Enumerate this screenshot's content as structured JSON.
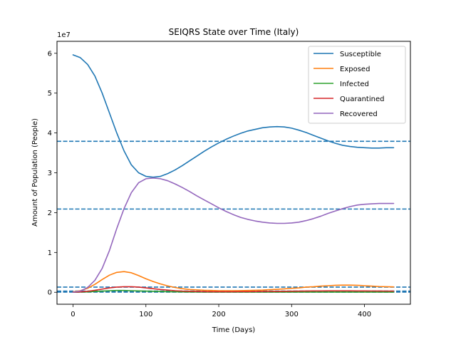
{
  "chart_data": {
    "type": "line",
    "title": "SEIQRS State over Time (Italy)",
    "xlabel": "Time (Days)",
    "ylabel": "Amount of Population (People)",
    "y_offset_label": "1e7",
    "xlim": [
      -22,
      463
    ],
    "ylim": [
      -3000000,
      63000000
    ],
    "x_ticks": [
      0,
      100,
      200,
      300,
      400
    ],
    "x_tick_labels": [
      "0",
      "100",
      "200",
      "300",
      "400"
    ],
    "y_ticks": [
      0,
      10000000,
      20000000,
      30000000,
      40000000,
      50000000,
      60000000
    ],
    "y_tick_labels": [
      "0",
      "1",
      "2",
      "3",
      "4",
      "5",
      "6"
    ],
    "legend_position": "top-right",
    "grid": false,
    "x": [
      0,
      10,
      20,
      30,
      40,
      50,
      60,
      70,
      80,
      90,
      100,
      110,
      120,
      130,
      140,
      150,
      160,
      170,
      180,
      190,
      200,
      210,
      220,
      230,
      240,
      250,
      260,
      270,
      280,
      290,
      300,
      310,
      320,
      330,
      340,
      350,
      360,
      370,
      380,
      390,
      400,
      410,
      420,
      430,
      440
    ],
    "series": [
      {
        "name": "Susceptible",
        "color": "#1f77b4",
        "values": [
          59600000,
          58900000,
          57200000,
          54300000,
          50000000,
          45000000,
          40000000,
          35500000,
          32000000,
          30000000,
          29100000,
          28900000,
          29100000,
          29800000,
          30700000,
          31800000,
          33000000,
          34200000,
          35400000,
          36500000,
          37500000,
          38400000,
          39200000,
          39900000,
          40500000,
          40900000,
          41300000,
          41500000,
          41600000,
          41500000,
          41200000,
          40700000,
          40100000,
          39400000,
          38700000,
          38000000,
          37400000,
          36900000,
          36600000,
          36400000,
          36300000,
          36200000,
          36200000,
          36300000,
          36300000
        ]
      },
      {
        "name": "Exposed",
        "color": "#ff7f0e",
        "values": [
          100000,
          400000,
          1000000,
          2000000,
          3200000,
          4300000,
          5000000,
          5200000,
          4900000,
          4200000,
          3400000,
          2700000,
          2100000,
          1600000,
          1200000,
          900000,
          700000,
          600000,
          500000,
          450000,
          400000,
          400000,
          400000,
          420000,
          450000,
          500000,
          550000,
          650000,
          750000,
          850000,
          1000000,
          1100000,
          1300000,
          1400000,
          1550000,
          1650000,
          1750000,
          1800000,
          1800000,
          1750000,
          1650000,
          1550000,
          1450000,
          1400000,
          1350000
        ]
      },
      {
        "name": "Infected",
        "color": "#2ca02c",
        "values": [
          0,
          50000,
          100000,
          200000,
          300000,
          400000,
          450000,
          450000,
          400000,
          350000,
          300000,
          250000,
          200000,
          150000,
          120000,
          100000,
          80000,
          70000,
          60000,
          60000,
          60000,
          60000,
          60000,
          60000,
          60000,
          60000,
          60000,
          60000,
          60000,
          60000,
          60000,
          60000,
          60000,
          60000,
          60000,
          60000,
          60000,
          60000,
          60000,
          60000,
          60000,
          60000,
          60000,
          60000,
          60000
        ]
      },
      {
        "name": "Quarantined",
        "color": "#d62728",
        "values": [
          0,
          100000,
          250000,
          500000,
          800000,
          1100000,
          1300000,
          1400000,
          1400000,
          1300000,
          1100000,
          900000,
          700000,
          550000,
          400000,
          300000,
          250000,
          200000,
          170000,
          150000,
          150000,
          150000,
          150000,
          160000,
          170000,
          180000,
          200000,
          220000,
          240000,
          260000,
          280000,
          300000,
          320000,
          340000,
          350000,
          360000,
          370000,
          370000,
          360000,
          350000,
          340000,
          330000,
          320000,
          310000,
          300000
        ]
      },
      {
        "name": "Recovered",
        "color": "#9467bd",
        "values": [
          0,
          300000,
          1200000,
          3000000,
          6000000,
          10500000,
          16000000,
          21000000,
          25000000,
          27500000,
          28500000,
          28700000,
          28500000,
          28000000,
          27200000,
          26300000,
          25300000,
          24200000,
          23200000,
          22200000,
          21200000,
          20300000,
          19500000,
          18800000,
          18300000,
          17900000,
          17600000,
          17400000,
          17300000,
          17300000,
          17400000,
          17600000,
          18000000,
          18500000,
          19100000,
          19800000,
          20400000,
          21000000,
          21500000,
          21900000,
          22100000,
          22200000,
          22300000,
          22300000,
          22300000
        ]
      }
    ],
    "reference_lines": {
      "color": "#1f77b4",
      "values": [
        37900000,
        20900000,
        1300000,
        300000,
        100000,
        50000
      ]
    }
  }
}
